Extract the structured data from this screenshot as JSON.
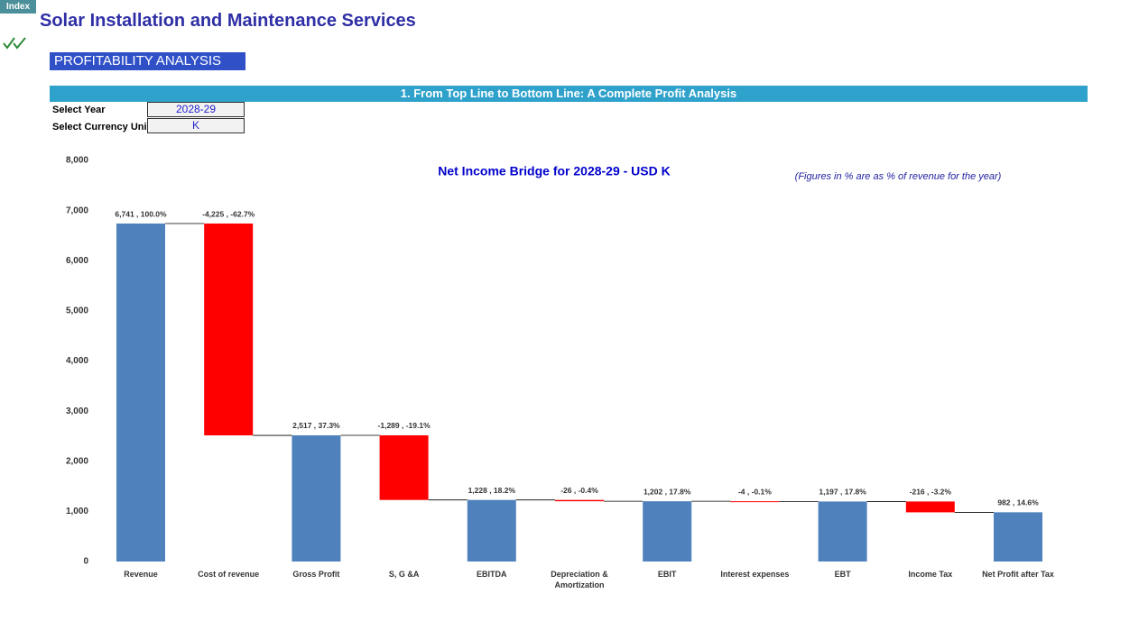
{
  "index_button": "Index",
  "title": "Solar Installation and Maintenance Services",
  "section": "PROFITABILITY ANALYSIS",
  "banner": "1. From Top Line to Bottom Line: A Complete Profit Analysis",
  "select_year_label": "Select Year",
  "select_year": "2028-29",
  "select_currency_label": "Select Currency Uni",
  "select_currency": "K",
  "chart_data": {
    "type": "waterfall",
    "title": "Net Income Bridge for 2028-29 - USD K",
    "annotation": "(Figures in % are as % of revenue for the year)",
    "categories": [
      "Revenue",
      "Cost of revenue",
      "Gross Profit",
      "S, G &A",
      "EBITDA",
      "Depreciation & Amortization",
      "EBIT",
      "Interest expenses",
      "EBT",
      "Income Tax",
      "Net Profit after Tax"
    ],
    "values": [
      6741,
      -4225,
      2517,
      -1289,
      1228,
      -26,
      1202,
      -4,
      1197,
      -216,
      982
    ],
    "value_labels": [
      "6,741 , 100.0%",
      "-4,225 , -62.7%",
      "2,517 , 37.3%",
      "-1,289 , -19.1%",
      "1,228 , 18.2%",
      "-26 , -0.4%",
      "1,202 , 17.8%",
      "-4 , -0.1%",
      "1,197 , 17.8%",
      "-216 , -3.2%",
      "982 , 14.6%"
    ],
    "total_color": "#4f81bd",
    "decrease_color": "#ff0000",
    "ylim": [
      0,
      8000
    ],
    "yticks": [
      0,
      {
        "value": 1000,
        "label": "1,000"
      },
      {
        "value": 2000,
        "label": "2,000"
      },
      {
        "value": 3000,
        "label": "3,000"
      },
      {
        "value": 4000,
        "label": "4,000"
      },
      {
        "value": 5000,
        "label": "5,000"
      },
      {
        "value": 6000,
        "label": "6,000"
      },
      {
        "value": 7000,
        "label": "7,000"
      },
      {
        "value": 8000,
        "label": "8,000"
      }
    ]
  }
}
